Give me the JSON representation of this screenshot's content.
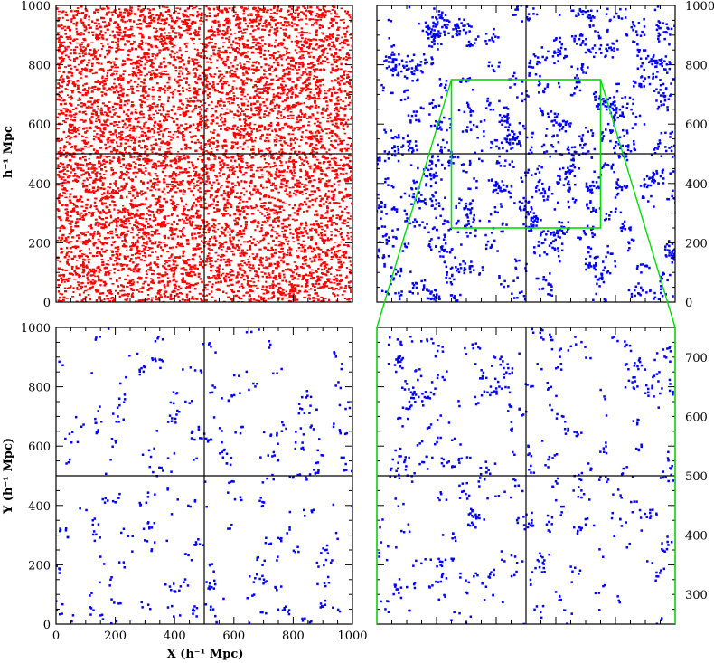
{
  "colors": {
    "panel_a_points": "#ff0000",
    "panel_b_points": "#0000ff",
    "panel_c_points": "#0000ff",
    "panel_d_points": "#0000ff",
    "zoom_outline": "#00dd00",
    "axes": "#000000"
  },
  "labels": {
    "ylabel_top": "h⁻¹ Mpc",
    "ylabel_bottom": "Y (h⁻¹ Mpc)",
    "xlabel_bottom": "X (h⁻¹ Mpc)"
  },
  "chart_data": [
    {
      "panel": "top-left",
      "type": "scatter",
      "xlim": [
        0,
        1000
      ],
      "ylim": [
        0,
        1000
      ],
      "point_color": "#ff0000",
      "distribution": "dense uniform random field",
      "yticks": [
        "0",
        "200",
        "400",
        "600",
        "800",
        "1000"
      ],
      "ylabel": "h⁻¹ Mpc",
      "reference_lines": {
        "x": 500,
        "y": 500
      }
    },
    {
      "panel": "top-right",
      "type": "scatter",
      "xlim": [
        0,
        1000
      ],
      "ylim": [
        0,
        1000
      ],
      "point_color": "#0000ff",
      "distribution": "clustered field",
      "yticks": [
        "0",
        "200",
        "400",
        "600",
        "800",
        "1000"
      ],
      "yaxis_side": "right",
      "reference_lines": {
        "x": 500,
        "y": 500
      },
      "zoom_region": {
        "x": [
          250,
          750
        ],
        "y": [
          250,
          750
        ]
      }
    },
    {
      "panel": "bottom-left",
      "type": "scatter",
      "xlim": [
        0,
        1000
      ],
      "ylim": [
        0,
        1000
      ],
      "point_color": "#0000ff",
      "distribution": "sparse clustered field",
      "xticks": [
        "0",
        "200",
        "400",
        "600",
        "800",
        "1000"
      ],
      "yticks": [
        "0",
        "200",
        "400",
        "600",
        "800",
        "1000"
      ],
      "xlabel": "X (h⁻¹ Mpc)",
      "ylabel": "Y (h⁻¹ Mpc)",
      "reference_lines": {
        "x": 500,
        "y": 500
      }
    },
    {
      "panel": "bottom-right",
      "type": "scatter",
      "xlim": [
        250,
        750
      ],
      "ylim": [
        250,
        750
      ],
      "point_color": "#0000ff",
      "distribution": "zoomed clustered field",
      "yticks": [
        "300",
        "400",
        "500",
        "600",
        "700"
      ],
      "yaxis_side": "right",
      "reference_lines": {
        "x": 500,
        "y": 500
      }
    }
  ]
}
